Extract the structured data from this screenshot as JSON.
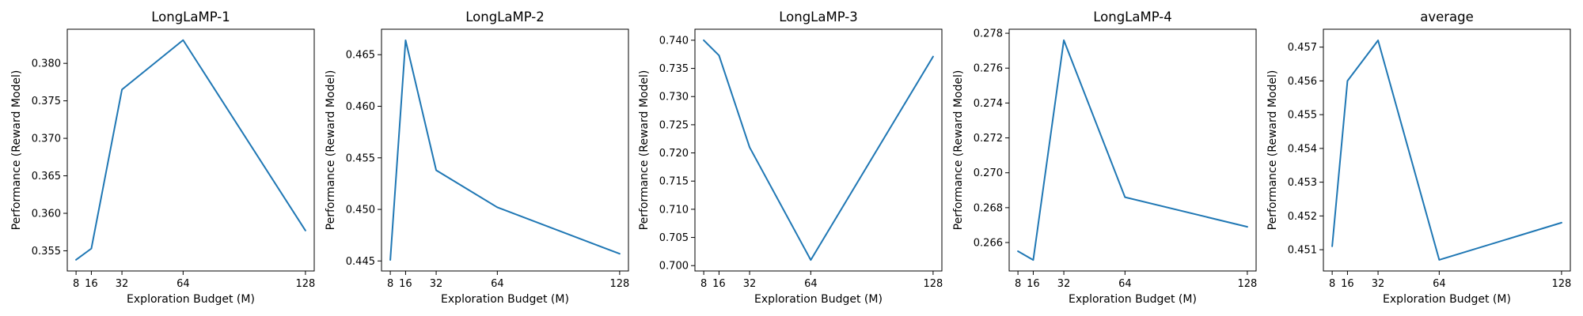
{
  "figure": {
    "series_color": "#1f77b4"
  },
  "chart_data": [
    {
      "type": "line",
      "title": "LongLaMP-1",
      "xlabel": "Exploration Budget (M)",
      "ylabel": "Performance (Reward Model)",
      "x": [
        8,
        16,
        32,
        64,
        128
      ],
      "xticks": [
        "8",
        "16",
        "32",
        "64",
        "128"
      ],
      "xlim": [
        3.4,
        132.6
      ],
      "series": [
        {
          "name": "LongLaMP-1",
          "values": [
            0.3538,
            0.3553,
            0.3765,
            0.3831,
            0.3577
          ]
        }
      ],
      "ylim": [
        0.35231,
        0.38455
      ],
      "yticks": [
        "0.355",
        "0.360",
        "0.365",
        "0.370",
        "0.375",
        "0.380"
      ]
    },
    {
      "type": "line",
      "title": "LongLaMP-2",
      "xlabel": "Exploration Budget (M)",
      "ylabel": "Performance (Reward Model)",
      "x": [
        8,
        16,
        32,
        64,
        128
      ],
      "xticks": [
        "8",
        "16",
        "32",
        "64",
        "128"
      ],
      "xlim": [
        3.4,
        132.6
      ],
      "series": [
        {
          "name": "LongLaMP-2",
          "values": [
            0.4451,
            0.4664,
            0.4538,
            0.4502,
            0.4457
          ]
        }
      ],
      "ylim": [
        0.44403,
        0.46747
      ],
      "yticks": [
        "0.445",
        "0.450",
        "0.455",
        "0.460",
        "0.465"
      ]
    },
    {
      "type": "line",
      "title": "LongLaMP-3",
      "xlabel": "Exploration Budget (M)",
      "ylabel": "Performance (Reward Model)",
      "x": [
        8,
        16,
        32,
        64,
        128
      ],
      "xticks": [
        "8",
        "16",
        "32",
        "64",
        "128"
      ],
      "xlim": [
        3.4,
        132.6
      ],
      "series": [
        {
          "name": "LongLaMP-3",
          "values": [
            0.74,
            0.7373,
            0.721,
            0.701,
            0.7371
          ]
        }
      ],
      "ylim": [
        0.69905,
        0.74195
      ],
      "yticks": [
        "0.700",
        "0.705",
        "0.710",
        "0.715",
        "0.720",
        "0.725",
        "0.730",
        "0.735",
        "0.740"
      ]
    },
    {
      "type": "line",
      "title": "LongLaMP-4",
      "xlabel": "Exploration Budget (M)",
      "ylabel": "Performance (Reward Model)",
      "x": [
        8,
        16,
        32,
        64,
        128
      ],
      "xticks": [
        "8",
        "16",
        "32",
        "64",
        "128"
      ],
      "xlim": [
        3.4,
        132.6
      ],
      "series": [
        {
          "name": "LongLaMP-4",
          "values": [
            0.2655,
            0.265,
            0.2776,
            0.2686,
            0.2669
          ]
        }
      ],
      "ylim": [
        0.26437,
        0.27823
      ],
      "yticks": [
        "0.266",
        "0.268",
        "0.270",
        "0.272",
        "0.274",
        "0.276",
        "0.278"
      ]
    },
    {
      "type": "line",
      "title": "average",
      "xlabel": "Exploration Budget (M)",
      "ylabel": "Performance (Reward Model)",
      "x": [
        8,
        16,
        32,
        64,
        128
      ],
      "xticks": [
        "8",
        "16",
        "32",
        "64",
        "128"
      ],
      "xlim": [
        3.4,
        132.6
      ],
      "series": [
        {
          "name": "average",
          "values": [
            0.4511,
            0.456,
            0.4572,
            0.4507,
            0.4518
          ]
        }
      ],
      "ylim": [
        0.45037,
        0.45753
      ],
      "yticks": [
        "0.451",
        "0.452",
        "0.453",
        "0.454",
        "0.455",
        "0.456",
        "0.457"
      ]
    }
  ]
}
